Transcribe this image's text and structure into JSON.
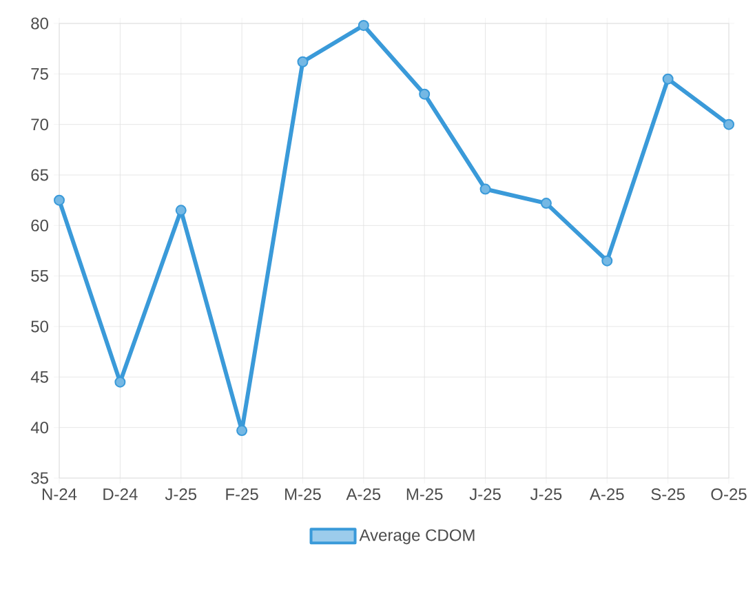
{
  "chart_data": {
    "type": "line",
    "categories": [
      "N-24",
      "D-24",
      "J-25",
      "F-25",
      "M-25",
      "A-25",
      "M-25",
      "J-25",
      "J-25",
      "A-25",
      "S-25",
      "O-25"
    ],
    "series": [
      {
        "name": "Average CDOM",
        "color": "#3a9ad9",
        "values": [
          62.5,
          44.5,
          61.5,
          39.7,
          76.2,
          79.8,
          73.0,
          63.6,
          62.2,
          56.5,
          74.5,
          70.0
        ]
      }
    ],
    "ylim": [
      35,
      80
    ],
    "yticks": [
      35,
      40,
      45,
      50,
      55,
      60,
      65,
      70,
      75,
      80
    ],
    "grid": true,
    "legend": "bottom",
    "marker": "circle",
    "line_style": "solid"
  }
}
